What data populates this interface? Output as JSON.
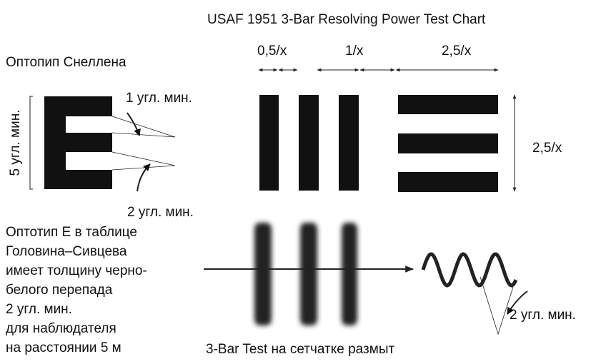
{
  "header": {
    "title": "USAF 1951 3-Bar Resolving Power Test Chart"
  },
  "snellen": {
    "title": "Оптопип Снеллена",
    "label_1": "1 угл. мин.",
    "label_5": "5 угл. мин.",
    "label_2": "2 угл. мин."
  },
  "description": {
    "lines": [
      "Оптотип Е в таблице",
      "Головина–Сивцева",
      "имеет толщину черно-",
      "белого перепада",
      "2 угл. мин.",
      "для наблюдателя",
      "на расстоянии 5 м"
    ]
  },
  "usaf": {
    "dim_1": "0,5/x",
    "dim_2": "1/x",
    "dim_3": "2,5/x",
    "dim_height": "2,5/x"
  },
  "retina": {
    "caption": "3-Bar Test на сетчатке размыт",
    "wave_label": "2 угл. мин."
  }
}
